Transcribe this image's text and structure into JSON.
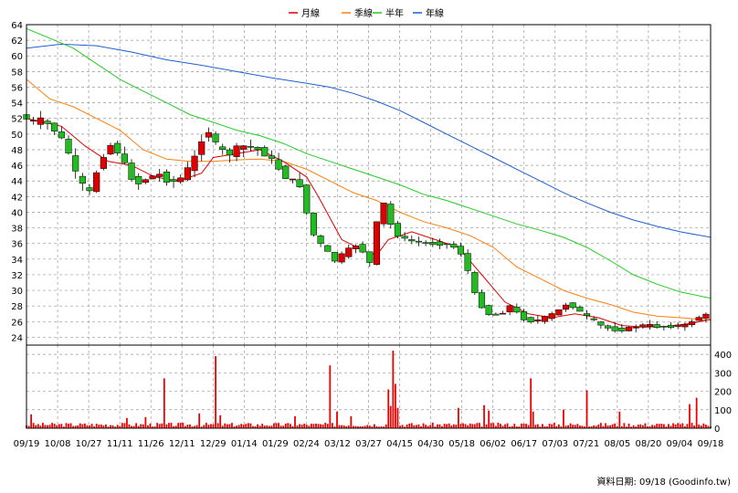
{
  "legend": [
    {
      "label": "月線",
      "color": "#e00000"
    },
    {
      "label": "季線",
      "color": "#ff7f0e"
    },
    {
      "label": "半年",
      "color": "#22cc22"
    },
    {
      "label": "年線",
      "color": "#1f5fd0"
    }
  ],
  "source_note": "資料日期: 09/18 (Goodinfo.tw)",
  "chart_data": {
    "type": "candlestick",
    "price_axis": {
      "min": 23,
      "max": 64,
      "ticks": [
        24,
        26,
        28,
        30,
        32,
        34,
        36,
        38,
        40,
        42,
        44,
        46,
        48,
        50,
        52,
        54,
        56,
        58,
        60,
        62,
        64
      ]
    },
    "volume_axis": {
      "min": 0,
      "max": 450,
      "ticks": [
        0,
        100,
        200,
        300,
        400
      ]
    },
    "x_ticks": [
      "09/19",
      "10/08",
      "10/27",
      "11/11",
      "11/26",
      "12/11",
      "12/29",
      "01/14",
      "01/29",
      "02/24",
      "03/12",
      "03/27",
      "04/15",
      "04/30",
      "05/18",
      "06/02",
      "06/17",
      "07/03",
      "07/21",
      "08/05",
      "08/20",
      "09/04",
      "09/18"
    ],
    "grid": true,
    "candle_colors": {
      "up": "#dd0000",
      "down": "#22bb22"
    },
    "price_path": [
      [
        0,
        52.5
      ],
      [
        5,
        51.5
      ],
      [
        10,
        51.8
      ],
      [
        15,
        50.5
      ],
      [
        20,
        48.5
      ],
      [
        25,
        44
      ],
      [
        30,
        42.5
      ],
      [
        35,
        47
      ],
      [
        40,
        49
      ],
      [
        45,
        46
      ],
      [
        50,
        43.5
      ],
      [
        55,
        44.5
      ],
      [
        60,
        44.8
      ],
      [
        65,
        43.8
      ],
      [
        70,
        44.5
      ],
      [
        75,
        47
      ],
      [
        80,
        51
      ],
      [
        85,
        48
      ],
      [
        90,
        47.5
      ],
      [
        95,
        48.5
      ],
      [
        100,
        48.3
      ],
      [
        105,
        47.5
      ],
      [
        110,
        46
      ],
      [
        115,
        44.2
      ],
      [
        120,
        43.5
      ],
      [
        125,
        37.5
      ],
      [
        130,
        35.5
      ],
      [
        135,
        33.8
      ],
      [
        140,
        35
      ],
      [
        145,
        36
      ],
      [
        150,
        33.5
      ],
      [
        155,
        42
      ],
      [
        160,
        37.5
      ],
      [
        165,
        36.5
      ],
      [
        170,
        36.2
      ],
      [
        175,
        36
      ],
      [
        180,
        36
      ],
      [
        185,
        35.8
      ],
      [
        190,
        34.5
      ],
      [
        195,
        29.5
      ],
      [
        200,
        27
      ],
      [
        205,
        26.8
      ],
      [
        210,
        28
      ],
      [
        215,
        26.5
      ],
      [
        220,
        26
      ],
      [
        225,
        26.5
      ],
      [
        230,
        27.2
      ],
      [
        235,
        28.5
      ],
      [
        240,
        27.2
      ],
      [
        245,
        26.2
      ],
      [
        250,
        25.3
      ],
      [
        255,
        25
      ],
      [
        260,
        25
      ],
      [
        265,
        25.5
      ],
      [
        270,
        25.5
      ],
      [
        275,
        25.3
      ],
      [
        280,
        25.5
      ],
      [
        285,
        25.5
      ],
      [
        290,
        26.5
      ],
      [
        293,
        26.8
      ]
    ],
    "ma_month": [
      [
        0,
        52
      ],
      [
        15,
        51
      ],
      [
        25,
        48.5
      ],
      [
        35,
        46.5
      ],
      [
        45,
        46
      ],
      [
        55,
        44.5
      ],
      [
        65,
        44
      ],
      [
        75,
        45
      ],
      [
        80,
        47
      ],
      [
        90,
        47.5
      ],
      [
        100,
        48
      ],
      [
        110,
        46.5
      ],
      [
        120,
        44.5
      ],
      [
        125,
        42
      ],
      [
        135,
        36.5
      ],
      [
        145,
        35
      ],
      [
        150,
        34.5
      ],
      [
        155,
        36.5
      ],
      [
        165,
        37.5
      ],
      [
        175,
        36.5
      ],
      [
        185,
        35.5
      ],
      [
        195,
        32
      ],
      [
        205,
        28.5
      ],
      [
        215,
        27
      ],
      [
        225,
        26.5
      ],
      [
        235,
        27
      ],
      [
        245,
        26.5
      ],
      [
        255,
        25.5
      ],
      [
        265,
        25.3
      ],
      [
        275,
        25.4
      ],
      [
        285,
        25.8
      ],
      [
        293,
        26.3
      ]
    ],
    "ma_quarter": [
      [
        0,
        57
      ],
      [
        10,
        54.5
      ],
      [
        20,
        53.5
      ],
      [
        30,
        52
      ],
      [
        40,
        50.5
      ],
      [
        50,
        48
      ],
      [
        60,
        46.8
      ],
      [
        70,
        46.5
      ],
      [
        80,
        46.5
      ],
      [
        90,
        46.7
      ],
      [
        100,
        46.8
      ],
      [
        110,
        46.5
      ],
      [
        120,
        45.5
      ],
      [
        130,
        44
      ],
      [
        140,
        42.5
      ],
      [
        150,
        41.5
      ],
      [
        160,
        40
      ],
      [
        170,
        38.8
      ],
      [
        180,
        38
      ],
      [
        190,
        37
      ],
      [
        200,
        35.5
      ],
      [
        210,
        33
      ],
      [
        220,
        31.5
      ],
      [
        230,
        30
      ],
      [
        240,
        29
      ],
      [
        250,
        28.2
      ],
      [
        260,
        27.2
      ],
      [
        270,
        26.7
      ],
      [
        280,
        26.5
      ],
      [
        293,
        26.2
      ]
    ],
    "ma_half": [
      [
        0,
        63.5
      ],
      [
        8,
        62.5
      ],
      [
        20,
        61
      ],
      [
        30,
        59
      ],
      [
        40,
        57
      ],
      [
        50,
        55.5
      ],
      [
        60,
        54
      ],
      [
        70,
        52.5
      ],
      [
        80,
        51.5
      ],
      [
        90,
        50.5
      ],
      [
        100,
        49.8
      ],
      [
        110,
        48.8
      ],
      [
        120,
        47.5
      ],
      [
        130,
        46.5
      ],
      [
        140,
        45.5
      ],
      [
        150,
        44.5
      ],
      [
        160,
        43.5
      ],
      [
        170,
        42.3
      ],
      [
        180,
        41.5
      ],
      [
        190,
        40.5
      ],
      [
        200,
        39.5
      ],
      [
        210,
        38.5
      ],
      [
        220,
        37.7
      ],
      [
        230,
        36.8
      ],
      [
        240,
        35.5
      ],
      [
        250,
        33.8
      ],
      [
        260,
        32
      ],
      [
        270,
        30.8
      ],
      [
        280,
        29.8
      ],
      [
        293,
        29
      ]
    ],
    "ma_year": [
      [
        0,
        61
      ],
      [
        15,
        61.5
      ],
      [
        30,
        61.3
      ],
      [
        45,
        60.5
      ],
      [
        60,
        59.5
      ],
      [
        75,
        58.8
      ],
      [
        90,
        58
      ],
      [
        105,
        57.2
      ],
      [
        120,
        56.5
      ],
      [
        130,
        56
      ],
      [
        140,
        55.2
      ],
      [
        150,
        54.2
      ],
      [
        160,
        53
      ],
      [
        170,
        51.5
      ],
      [
        180,
        50
      ],
      [
        190,
        48.5
      ],
      [
        200,
        47
      ],
      [
        210,
        45.5
      ],
      [
        220,
        44
      ],
      [
        230,
        42.5
      ],
      [
        240,
        41.2
      ],
      [
        250,
        40
      ],
      [
        260,
        39
      ],
      [
        270,
        38.2
      ],
      [
        280,
        37.5
      ],
      [
        293,
        36.8
      ]
    ],
    "volume": [
      {
        "d": 2,
        "v": 75
      },
      {
        "d": 43,
        "v": 55
      },
      {
        "d": 51,
        "v": 60
      },
      {
        "d": 59,
        "v": 270
      },
      {
        "d": 74,
        "v": 80
      },
      {
        "d": 81,
        "v": 390
      },
      {
        "d": 83,
        "v": 70
      },
      {
        "d": 115,
        "v": 65
      },
      {
        "d": 130,
        "v": 340
      },
      {
        "d": 133,
        "v": 90
      },
      {
        "d": 139,
        "v": 65
      },
      {
        "d": 155,
        "v": 210
      },
      {
        "d": 156,
        "v": 120
      },
      {
        "d": 157,
        "v": 420
      },
      {
        "d": 158,
        "v": 240
      },
      {
        "d": 159,
        "v": 110
      },
      {
        "d": 185,
        "v": 110
      },
      {
        "d": 196,
        "v": 125
      },
      {
        "d": 198,
        "v": 95
      },
      {
        "d": 216,
        "v": 270
      },
      {
        "d": 217,
        "v": 90
      },
      {
        "d": 230,
        "v": 100
      },
      {
        "d": 240,
        "v": 205
      },
      {
        "d": 254,
        "v": 90
      },
      {
        "d": 284,
        "v": 130
      },
      {
        "d": 287,
        "v": 165
      }
    ]
  }
}
